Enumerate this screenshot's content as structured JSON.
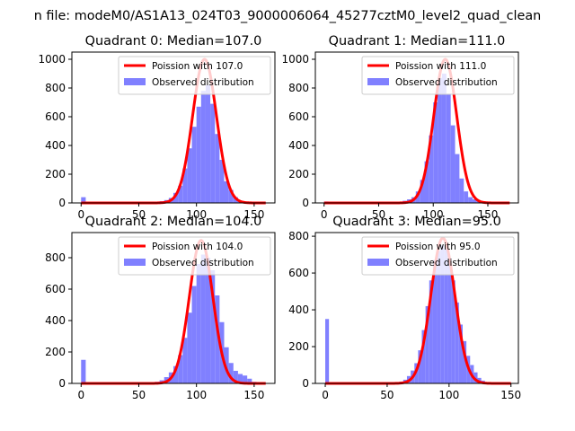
{
  "suptitle": "n file: modeM0/AS1A13_024T03_9000006064_45277cztM0_level2_quad_clean",
  "colors": {
    "observed": "#8080ff",
    "poisson": "#ff0000"
  },
  "chart_data": [
    {
      "type": "bar+line",
      "title": "Quadrant 0: Median=107.0",
      "xlim": [
        -8,
        168
      ],
      "ylim": [
        0,
        1050
      ],
      "xticks": [
        0,
        50,
        100,
        150
      ],
      "yticks": [
        0,
        200,
        400,
        600,
        800,
        1000
      ],
      "grid": false,
      "legend_position": "top-right",
      "legend": [
        "Poission with 107.0",
        "Observed distribution"
      ],
      "bin_width": 4,
      "observed": {
        "name": "Observed distribution",
        "bins_start": [
          0,
          64,
          68,
          72,
          76,
          80,
          84,
          88,
          92,
          96,
          100,
          104,
          108,
          112,
          116,
          120,
          124,
          128,
          132,
          136,
          140
        ],
        "counts": [
          40,
          5,
          12,
          20,
          35,
          70,
          120,
          240,
          380,
          530,
          670,
          780,
          820,
          690,
          480,
          300,
          150,
          90,
          40,
          15,
          5
        ]
      },
      "poisson": {
        "name": "Poission with 107.0",
        "mean": 107.0,
        "peak": 1000,
        "sigma": 10.34,
        "x_range": [
          0,
          160
        ]
      }
    },
    {
      "type": "bar+line",
      "title": "Quadrant 1: Median=111.0",
      "xlim": [
        -8,
        178
      ],
      "ylim": [
        0,
        1050
      ],
      "xticks": [
        0,
        50,
        100,
        150
      ],
      "yticks": [
        0,
        200,
        400,
        600,
        800,
        1000
      ],
      "grid": false,
      "legend_position": "top-right",
      "legend": [
        "Poission with 111.0",
        "Observed distribution"
      ],
      "bin_width": 4,
      "observed": {
        "name": "Observed distribution",
        "bins_start": [
          0,
          68,
          72,
          76,
          80,
          84,
          88,
          92,
          96,
          100,
          104,
          108,
          112,
          116,
          120,
          124,
          128,
          132,
          136,
          140,
          144
        ],
        "counts": [
          10,
          5,
          15,
          25,
          40,
          80,
          160,
          290,
          470,
          700,
          870,
          900,
          760,
          540,
          340,
          170,
          80,
          40,
          25,
          10,
          5
        ]
      },
      "poisson": {
        "name": "Poission with 111.0",
        "mean": 111.0,
        "peak": 1000,
        "sigma": 10.54,
        "x_range": [
          0,
          170
        ]
      }
    },
    {
      "type": "bar+line",
      "title": "Quadrant 2: Median=104.0",
      "xlim": [
        -8,
        168
      ],
      "ylim": [
        0,
        960
      ],
      "xticks": [
        0,
        50,
        100,
        150
      ],
      "yticks": [
        0,
        200,
        400,
        600,
        800
      ],
      "grid": false,
      "legend_position": "top-right",
      "legend": [
        "Poission with 104.0",
        "Observed distribution"
      ],
      "bin_width": 4,
      "observed": {
        "name": "Observed distribution",
        "bins_start": [
          0,
          64,
          68,
          72,
          76,
          80,
          84,
          88,
          92,
          96,
          100,
          104,
          108,
          112,
          116,
          120,
          124,
          128,
          132,
          136,
          140,
          144,
          148
        ],
        "counts": [
          150,
          10,
          20,
          40,
          70,
          110,
          180,
          290,
          450,
          620,
          760,
          820,
          800,
          720,
          560,
          390,
          230,
          130,
          80,
          60,
          50,
          30,
          10
        ]
      },
      "poisson": {
        "name": "Poission with 104.0",
        "mean": 104.0,
        "peak": 910,
        "sigma": 10.2,
        "x_range": [
          0,
          160
        ]
      }
    },
    {
      "type": "bar+line",
      "title": "Quadrant 3: Median=95.0",
      "xlim": [
        -8,
        156
      ],
      "ylim": [
        0,
        820
      ],
      "xticks": [
        0,
        50,
        100,
        150
      ],
      "yticks": [
        0,
        200,
        400,
        600,
        800
      ],
      "grid": false,
      "legend_position": "top-right",
      "legend": [
        "Poission with 95.0",
        "Observed distribution"
      ],
      "bin_width": 3,
      "observed": {
        "name": "Observed distribution",
        "bins_start": [
          0,
          57,
          60,
          63,
          66,
          69,
          72,
          75,
          78,
          81,
          84,
          87,
          90,
          93,
          96,
          99,
          102,
          105,
          108,
          111,
          114,
          117,
          120,
          123,
          126
        ],
        "counts": [
          350,
          5,
          10,
          20,
          40,
          70,
          110,
          180,
          290,
          420,
          560,
          670,
          720,
          750,
          730,
          680,
          560,
          440,
          320,
          230,
          150,
          100,
          60,
          30,
          15
        ]
      },
      "poisson": {
        "name": "Poission with 95.0",
        "mean": 95.0,
        "peak": 790,
        "sigma": 9.75,
        "x_range": [
          0,
          150
        ]
      }
    }
  ]
}
